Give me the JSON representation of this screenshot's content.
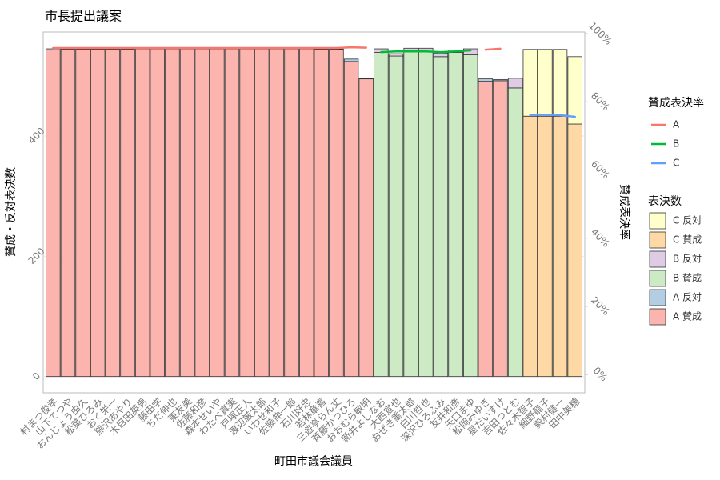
{
  "chart_data": {
    "type": "bar",
    "title": "市長提出議案",
    "x_label": "町田市議会議員",
    "y_label": "賛成・反対表決数",
    "y2_label": "賛成表決率",
    "line_legend_title": "賛成表決率",
    "bar_legend_title": "表決数",
    "categories": [
      "村まつ俊孝",
      "山下てつや",
      "おんじょう由久",
      "松葉ひろみ",
      "おく栄一",
      "熊沢あやり",
      "木目田英男",
      "藤田学",
      "ちだ伸也",
      "東友美",
      "佐藤和彦",
      "森本せいや",
      "わたべ真実",
      "戸塚正人",
      "渡辺厳太郎",
      "いわせ和子",
      "佐藤伸一郎",
      "石川好忠",
      "若林章喜",
      "三遊亭らん丈",
      "斉藤かつひろ",
      "おおむら敏明",
      "新井よしなお",
      "大西宣也",
      "おぜき重太郎",
      "白川哲也",
      "深沢ひろふみ",
      "友井和彦",
      "矢口まゆ",
      "松岡みゆき",
      "星だいすけ",
      "吉田つとむ",
      "佐々木智子",
      "細野龍子",
      "殿村健一",
      "田中美穂"
    ],
    "ylim": [
      -27,
      573
    ],
    "yticks": [
      0,
      200,
      400
    ],
    "y2lim": [
      -5.4,
      100.5
    ],
    "y2ticks": [
      {
        "value": 0,
        "label": "0%"
      },
      {
        "value": 20,
        "label": "20%"
      },
      {
        "value": 40,
        "label": "40%"
      },
      {
        "value": 60,
        "label": "60%"
      },
      {
        "value": 80,
        "label": "80%"
      },
      {
        "value": 100,
        "label": "100%"
      }
    ],
    "grid": true,
    "series": [
      {
        "name": "A 賛成",
        "type": "bar",
        "color": "#fbb4ae",
        "values": [
          543,
          544,
          544,
          544,
          544,
          544,
          545,
          545,
          545,
          545,
          545,
          545,
          545,
          545,
          545,
          545,
          545,
          545,
          544,
          544,
          524,
          495,
          null,
          null,
          null,
          null,
          null,
          null,
          null,
          491,
          492,
          null,
          null,
          null,
          null,
          null
        ]
      },
      {
        "name": "A 反対",
        "type": "bar",
        "color": "#b3cde3",
        "values": [
          2,
          1,
          1,
          1,
          1,
          1,
          1,
          1,
          1,
          1,
          1,
          1,
          1,
          1,
          1,
          1,
          1,
          1,
          1,
          1,
          4,
          1,
          null,
          null,
          null,
          null,
          null,
          null,
          null,
          4,
          2,
          null,
          null,
          null,
          null,
          null
        ]
      },
      {
        "name": "B 賛成",
        "type": "bar",
        "color": "#ccebc5",
        "values": [
          null,
          null,
          null,
          null,
          null,
          null,
          null,
          null,
          null,
          null,
          null,
          null,
          null,
          null,
          null,
          null,
          null,
          null,
          null,
          null,
          null,
          null,
          539,
          533,
          541,
          543,
          532,
          539,
          535,
          null,
          null,
          480,
          null,
          null,
          null,
          null
        ]
      },
      {
        "name": "B 反対",
        "type": "bar",
        "color": "#decbe4",
        "values": [
          null,
          null,
          null,
          null,
          null,
          null,
          null,
          null,
          null,
          null,
          null,
          null,
          null,
          null,
          null,
          null,
          null,
          null,
          null,
          null,
          null,
          null,
          6,
          4,
          5,
          3,
          6,
          4,
          10,
          null,
          null,
          16,
          null,
          null,
          null,
          null
        ]
      },
      {
        "name": "C 賛成",
        "type": "bar",
        "color": "#fed9a6",
        "values": [
          null,
          null,
          null,
          null,
          null,
          null,
          null,
          null,
          null,
          null,
          null,
          null,
          null,
          null,
          null,
          null,
          null,
          null,
          null,
          null,
          null,
          null,
          null,
          null,
          null,
          null,
          null,
          null,
          null,
          null,
          null,
          null,
          433,
          433,
          433,
          420
        ]
      },
      {
        "name": "C 反対",
        "type": "bar",
        "color": "#ffffcc",
        "values": [
          null,
          null,
          null,
          null,
          null,
          null,
          null,
          null,
          null,
          null,
          null,
          null,
          null,
          null,
          null,
          null,
          null,
          null,
          null,
          null,
          null,
          null,
          null,
          null,
          null,
          null,
          null,
          null,
          null,
          null,
          null,
          null,
          111,
          111,
          111,
          112
        ]
      },
      {
        "name": "A",
        "type": "line",
        "axis": "y2",
        "color": "#f8766d",
        "values": [
          95.8,
          95.8,
          95.8,
          95.8,
          95.8,
          95.8,
          95.8,
          95.8,
          95.8,
          95.8,
          95.8,
          95.8,
          95.8,
          95.8,
          95.8,
          95.8,
          95.8,
          95.8,
          95.8,
          95.8,
          96.0,
          95.9,
          null,
          null,
          null,
          null,
          null,
          null,
          null,
          95.3,
          95.6,
          null,
          null,
          null,
          null,
          null
        ]
      },
      {
        "name": "B",
        "type": "line",
        "axis": "y2",
        "color": "#00ba38",
        "values": [
          null,
          null,
          null,
          null,
          null,
          null,
          null,
          null,
          null,
          null,
          null,
          null,
          null,
          null,
          null,
          null,
          null,
          null,
          null,
          null,
          null,
          null,
          94.6,
          94.8,
          94.8,
          94.8,
          94.6,
          94.8,
          95.1,
          null,
          null,
          92.7,
          null,
          null,
          null,
          null
        ]
      },
      {
        "name": "C",
        "type": "line",
        "axis": "y2",
        "color": "#619cff",
        "values": [
          null,
          null,
          null,
          null,
          null,
          null,
          null,
          null,
          null,
          null,
          null,
          null,
          null,
          null,
          null,
          null,
          null,
          null,
          null,
          null,
          null,
          null,
          null,
          null,
          null,
          null,
          null,
          null,
          null,
          null,
          null,
          null,
          76.2,
          76.2,
          76.1,
          75.6
        ]
      }
    ]
  }
}
